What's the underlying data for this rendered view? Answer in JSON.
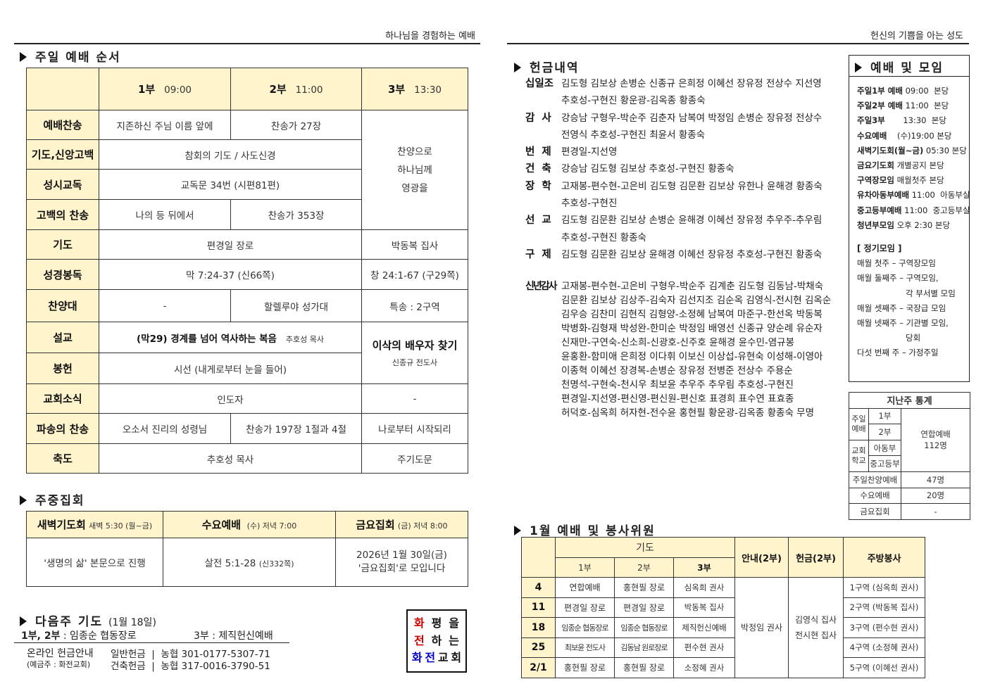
{
  "left_header": "하나님을 경험하는 예배",
  "right_header": "헌신의 기쁨을 아는 성도",
  "order": {
    "title": "주일 예배 순서",
    "services": [
      {
        "name": "1부",
        "time": "09:00"
      },
      {
        "name": "2부",
        "time": "11:00"
      },
      {
        "name": "3부",
        "time": "13:30"
      }
    ],
    "rows": {
      "worship_song": {
        "label": "예배찬송",
        "s1": "지존하신  주님 이름 앞에",
        "s2": "찬송가 27장"
      },
      "s3_praise": [
        "찬양으로",
        "하나님께",
        "영광을"
      ],
      "confession": {
        "label": "기도,신앙고백",
        "s12": "참회의 기도 / 사도신경"
      },
      "reading": {
        "label": "성시교독",
        "s12": "교독문 34번 (시편81편)"
      },
      "hymn": {
        "label": "고백의 찬송",
        "s1": "나의 등 뒤에서",
        "s2": "찬송가 353장"
      },
      "prayer": {
        "label": "기도",
        "s12": "편경일 장로",
        "s3": "박동복 집사"
      },
      "scripture": {
        "label": "성경봉독",
        "s12": "막 7:24-37 (신66쪽)",
        "s3": "창 24:1-67 (구29쪽)"
      },
      "choir": {
        "label": "찬양대",
        "s1": "-",
        "s2": "할렐루야 성가대",
        "s3": "특송 : 2구역"
      },
      "sermon": {
        "label": "설교",
        "s12": "(막29) 경계를 넘어 역사하는 복음",
        "preacher": "추호성 목사",
        "s3_title": "이삭의 배우자 찾기",
        "s3_preacher": "신종규 전도사"
      },
      "offering": {
        "label": "봉헌",
        "s12": "시선 (내게로부터 눈을 들어)"
      },
      "news": {
        "label": "교회소식",
        "s12": "인도자",
        "s3": "-"
      },
      "sending": {
        "label": "파송의 찬송",
        "s1": "오소서 진리의 성령님",
        "s2": "찬송가 197장 1절과 4절",
        "s3": "나로부터 시작되리"
      },
      "benediction": {
        "label": "축도",
        "s12": "추호성 목사",
        "s3": "주기도문"
      }
    }
  },
  "midweek": {
    "title": "주중집회",
    "cols": [
      {
        "name": "새벽기도회",
        "time": "새벽 5:30 (월~금)",
        "body": [
          "'생명의 삶' 본문으로 진행"
        ]
      },
      {
        "name": "수요예배",
        "time": "(수) 저녁 7:00",
        "body": [
          "살전 5:1-28",
          "(신332쪽)"
        ]
      },
      {
        "name": "금요집회",
        "time": "(금) 저녁 8:00",
        "body": [
          "2026년 1월 30일(금)",
          "'금요집회'로 모입니다"
        ]
      }
    ]
  },
  "next_prayer": {
    "title": "다음주 기도",
    "date": "(1월 18일)",
    "p12_label": "1부, 2부",
    "p12": ": 임종순 협동장로",
    "p3_label": "3부",
    "p3": ": 제직헌신예배"
  },
  "online": {
    "title": "온라인 헌금안내",
    "holder": "(예금주 : 화전교회)",
    "general": "일반헌금  |  농협 301-0177-5307-71",
    "building": "건축헌금  |  농협 317-0016-3790-51"
  },
  "motto": {
    "chars": [
      "화",
      "평",
      "을",
      "전",
      "하",
      "는",
      "화",
      "전",
      "교",
      "회"
    ],
    "colors": [
      "#d00000",
      "#111",
      "#111",
      "#d00000",
      "#111",
      "#111",
      "#0000cc",
      "#0000cc",
      "#111",
      "#111"
    ]
  },
  "offerings": {
    "title": "헌금내역",
    "items": [
      {
        "label": "십일조",
        "lines": [
          "김도형 김보상 손병순 신종규 은희정 이혜선 장유정 전상수 지선영",
          "추호성-구현진 황운광-김옥종 황종숙"
        ]
      },
      {
        "label": "감  사",
        "lines": [
          "강승남 구형우-박순주 김춘자 남복여 박정임 손병순 장유정 전상수",
          "전영식 추호성-구현진 최윤서 황종숙"
        ]
      },
      {
        "label": "번  제",
        "lines": [
          "편경일-지선영"
        ]
      },
      {
        "label": "건  축",
        "lines": [
          "강승남 김도형 김보상 추호성-구현진 황종숙"
        ]
      },
      {
        "label": "장  학",
        "lines": [
          "고재봉-편수현-고은비 김도형 김문환 김보상 유한나 윤해경 황종숙",
          "추호성-구현진"
        ]
      },
      {
        "label": "선  교",
        "lines": [
          "김도형 김문환 김보상 손병순 윤해경 이혜선 장유정 추우주-추우림",
          "추호성-구현진 황종숙"
        ]
      },
      {
        "label": "구  제",
        "lines": [
          "김도형 김문환 김보상 윤해경 이혜선 장유정 추호성-구현진 황종숙"
        ]
      }
    ],
    "newyear": {
      "label": "신년감사",
      "lines": [
        "고재봉-편수현-고은비 구형우-박순주 김계춘 김도형 김동남-박채숙",
        "김문환 김보상 김상주-김숙자 김선지조 김순옥 김영식-전시현 김옥순",
        "김우승 김찬미 김현직 김형양-소정혜 남복여 마준구-한선옥 박동복",
        "박병화-김형재 박성완-한미순 박정임 배영선 신종규 양순례 유순자",
        "신재만-구연숙-신소희-신광호-신주호 윤해경 윤수민-염규봉",
        "윤홍환-함미애 은희정 이다휘 이보신 이상섭-유현숙 이성해-이영아",
        "이종혁 이혜선 장경복-손병순 장유정 전병준 전상수 주용순",
        "천명석-구현숙-천시우 최보윤 추우주 추우림 추호성-구현진",
        "편경일-지선영-편신영-편신원-편신호 표경희 표수연 표효종",
        "허덕호-심옥희 허자현-전수윤 홍현필 황운광-김옥종 황종숙 무명"
      ]
    }
  },
  "meetings": {
    "title": "예배 및 모임",
    "items": [
      [
        "주일1부 예배",
        "09:00  본당"
      ],
      [
        "주일2부 예배",
        "11:00  본당"
      ],
      [
        "주일3부",
        "      13:30  본당"
      ],
      [
        "수요예배",
        "   (수)19:00 본당"
      ],
      [
        "새벽기도회(월~금)",
        "05:30 본당"
      ],
      [
        "금요기도회",
        "개별공지 본당"
      ],
      [
        "구역장모임",
        "매월첫주 본당"
      ],
      [
        "유차아동부예배",
        "11:00  아동부실"
      ],
      [
        "중고등부예배",
        "11:00  중고등부실"
      ],
      [
        "청년부모임",
        "오후 2:30 본당"
      ]
    ],
    "regular_title": "[ 정기모임 ]",
    "regular": [
      "매월 첫주 – 구역장모임",
      "매월 둘째주 – 구역모임,",
      "각 부서별 모임",
      "매월 셋째주 – 국장급 모임",
      "매월 넷째주 – 기관별 모임,",
      "당회",
      "다섯 번째 주 – 가정주일"
    ]
  },
  "stats": {
    "title": "지난주 통계",
    "sunday": "주일예배",
    "s1": "1부",
    "s2": "2부",
    "school": "교회학교",
    "kids": "아동부",
    "youth": "중고등부",
    "joint": "연합예배",
    "joint_count": "112명",
    "praise": "주일찬양예배",
    "praise_count": "47명",
    "wed": "수요예배",
    "wed_count": "20명",
    "fri": "금요집회",
    "fri_count": "-"
  },
  "servers": {
    "title": "1월 예배 및 봉사위원",
    "prayer": "기도",
    "c1": "1부",
    "c2": "2부",
    "c3": "3부",
    "usher": "안내(2부)",
    "offering": "헌금(2부)",
    "kitchen": "주방봉사",
    "usher_name": "박정임 권사",
    "offering_names": [
      "김영식 집사",
      "전시현 집사"
    ],
    "rows": [
      {
        "date": "4",
        "p1": "연합예배",
        "p2": "홍현필 장로",
        "p3": "심옥희 권사",
        "kitchen": "1구역 (심옥희 권사)"
      },
      {
        "date": "11",
        "p1": "편경일 장로",
        "p2": "편경일 장로",
        "p3": "박동복 집사",
        "kitchen": "2구역 (박동복 집사)"
      },
      {
        "date": "18",
        "p1": "임종순 협동장로",
        "p2": "임종순 협동장로",
        "p3": "제직헌신예배",
        "kitchen": "3구역 (편수현 권사)"
      },
      {
        "date": "25",
        "p1": "최보윤 전도사",
        "p2": "김동남 원로장로",
        "p3": "편수현 권사",
        "kitchen": "4구역 (소정혜 권사)"
      },
      {
        "date": "2/1",
        "p1": "홍현필 장로",
        "p2": "홍현필 장로",
        "p3": "소정혜 권사",
        "kitchen": "5구역 (이혜선 권사)"
      }
    ]
  }
}
